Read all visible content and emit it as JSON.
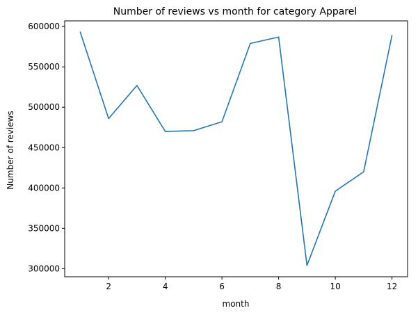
{
  "chart_data": {
    "type": "line",
    "title": "Number of reviews vs month for category Apparel",
    "xlabel": "month",
    "ylabel": "Number of reviews",
    "x": [
      1,
      2,
      3,
      4,
      5,
      6,
      7,
      8,
      9,
      10,
      11,
      12
    ],
    "series": [
      {
        "values": [
          593000,
          486000,
          527000,
          470000,
          471000,
          482000,
          579000,
          587000,
          304000,
          396000,
          420000,
          589000
        ]
      }
    ],
    "xlim": [
      0.45,
      12.55
    ],
    "ylim": [
      290000,
      607000
    ],
    "xticks": [
      2,
      4,
      6,
      8,
      10,
      12
    ],
    "xtick_labels": [
      "2",
      "4",
      "6",
      "8",
      "10",
      "12"
    ],
    "yticks": [
      300000,
      350000,
      400000,
      450000,
      500000,
      550000,
      600000
    ],
    "ytick_labels": [
      "300000",
      "350000",
      "400000",
      "450000",
      "500000",
      "550000",
      "600000"
    ],
    "grid": false,
    "line_color": "#1f77b4"
  }
}
